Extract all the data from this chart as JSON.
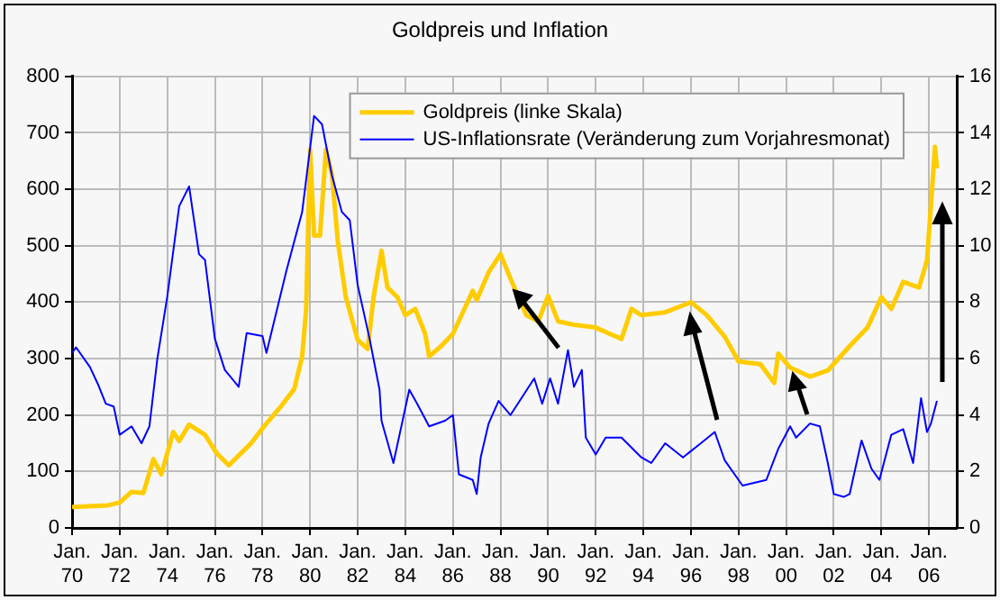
{
  "chart_data": {
    "type": "line",
    "title": "Goldpreis und Inflation",
    "marker": "none",
    "line_style": "solid",
    "grid": true,
    "legend": "top right",
    "xlim": [
      "1970-01",
      "2007-03"
    ],
    "xticks": [
      {
        "value": "1970-01",
        "label": "Jan. 70"
      },
      {
        "value": "1972-01",
        "label": "Jan. 72"
      },
      {
        "value": "1974-01",
        "label": "Jan. 74"
      },
      {
        "value": "1976-01",
        "label": "Jan. 76"
      },
      {
        "value": "1978-01",
        "label": "Jan. 78"
      },
      {
        "value": "1980-01",
        "label": "Jan. 80"
      },
      {
        "value": "1982-01",
        "label": "Jan. 82"
      },
      {
        "value": "1984-01",
        "label": "Jan. 84"
      },
      {
        "value": "1986-01",
        "label": "Jan. 86"
      },
      {
        "value": "1988-01",
        "label": "Jan. 88"
      },
      {
        "value": "1990-01",
        "label": "Jan. 90"
      },
      {
        "value": "1992-01",
        "label": "Jan. 92"
      },
      {
        "value": "1994-01",
        "label": "Jan. 94"
      },
      {
        "value": "1996-01",
        "label": "Jan. 96"
      },
      {
        "value": "1998-01",
        "label": "Jan. 98"
      },
      {
        "value": "2000-01",
        "label": "Jan. 00"
      },
      {
        "value": "2002-01",
        "label": "Jan. 02"
      },
      {
        "value": "2004-01",
        "label": "Jan. 04"
      },
      {
        "value": "2006-01",
        "label": "Jan. 06"
      }
    ],
    "ylim": [
      0,
      800
    ],
    "yticks": [
      0,
      100,
      200,
      300,
      400,
      500,
      600,
      700,
      800
    ],
    "y2lim": [
      0,
      16
    ],
    "y2ticks": [
      0,
      2,
      4,
      6,
      8,
      10,
      12,
      14,
      16
    ],
    "series": [
      {
        "name": "Goldpreis (linke Skala)",
        "color": "#ffcc00",
        "x": [
          "1970-01",
          "1971-07",
          "1972-01",
          "1972-07",
          "1973-01",
          "1973-06",
          "1973-10",
          "1974-04",
          "1974-07",
          "1974-12",
          "1975-08",
          "1976-02",
          "1976-08",
          "1977-07",
          "1978-02",
          "1978-10",
          "1979-05",
          "1979-09",
          "1979-11",
          "1980-01",
          "1980-03",
          "1980-06",
          "1980-09",
          "1980-12",
          "1981-03",
          "1981-07",
          "1982-01",
          "1982-06",
          "1982-09",
          "1983-01",
          "1983-04",
          "1983-09",
          "1984-01",
          "1984-06",
          "1984-11",
          "1985-01",
          "1985-07",
          "1986-01",
          "1986-11",
          "1987-01",
          "1987-07",
          "1988-01",
          "1988-06",
          "1989-02",
          "1989-08",
          "1990-01",
          "1990-06",
          "1991-02",
          "1992-01",
          "1992-08",
          "1993-02",
          "1993-07",
          "1993-12",
          "1994-12",
          "1996-01",
          "1996-09",
          "1997-06",
          "1998-01",
          "1998-12",
          "1999-07",
          "1999-09",
          "2000-03",
          "2001-01",
          "2001-10",
          "2002-09",
          "2003-06",
          "2004-01",
          "2004-06",
          "2004-12",
          "2005-08",
          "2005-12",
          "2006-02",
          "2006-04",
          "2006-05"
        ],
        "values": [
          37,
          40,
          45,
          64,
          62,
          122,
          95,
          170,
          154,
          183,
          165,
          132,
          111,
          149,
          181,
          214,
          246,
          304,
          387,
          670,
          518,
          518,
          670,
          626,
          507,
          409,
          333,
          317,
          409,
          491,
          426,
          409,
          377,
          388,
          344,
          304,
          322,
          344,
          420,
          404,
          453,
          485,
          442,
          377,
          366,
          411,
          366,
          360,
          355,
          344,
          335,
          388,
          377,
          382,
          400,
          377,
          339,
          295,
          290,
          257,
          309,
          284,
          268,
          279,
          322,
          355,
          409,
          388,
          436,
          426,
          474,
          572,
          675,
          637
        ]
      },
      {
        "name": "US-Inflationsrate (Veränderung zum Vorjahresmonat)",
        "color": "#0000ff",
        "axis": "y2",
        "x": [
          "1970-01",
          "1970-03",
          "1970-10",
          "1971-02",
          "1971-06",
          "1971-10",
          "1972-01",
          "1972-07",
          "1972-12",
          "1973-04",
          "1973-08",
          "1974-01",
          "1974-07",
          "1974-12",
          "1975-05",
          "1975-08",
          "1976-01",
          "1976-06",
          "1977-01",
          "1977-05",
          "1978-01",
          "1978-03",
          "1979-01",
          "1979-09",
          "1980-03",
          "1980-07",
          "1980-12",
          "1981-05",
          "1981-09",
          "1982-01",
          "1982-07",
          "1982-12",
          "1983-01",
          "1983-07",
          "1984-03",
          "1984-07",
          "1985-01",
          "1985-09",
          "1986-01",
          "1986-04",
          "1986-11",
          "1987-01",
          "1987-03",
          "1987-07",
          "1987-12",
          "1988-06",
          "1989-06",
          "1989-10",
          "1990-02",
          "1990-06",
          "1990-11",
          "1991-02",
          "1991-06",
          "1991-08",
          "1992-01",
          "1992-06",
          "1993-02",
          "1993-12",
          "1994-05",
          "1994-12",
          "1995-09",
          "1996-06",
          "1997-01",
          "1997-06",
          "1998-03",
          "1999-03",
          "1999-09",
          "2000-03",
          "2000-06",
          "2001-01",
          "2001-06",
          "2001-10",
          "2002-01",
          "2002-06",
          "2002-09",
          "2003-03",
          "2003-08",
          "2003-12",
          "2004-06",
          "2004-12",
          "2005-05",
          "2005-09",
          "2005-12",
          "2006-02",
          "2006-05"
        ],
        "values": [
          6.2,
          6.4,
          5.7,
          5.1,
          4.4,
          4.3,
          3.3,
          3.6,
          3.0,
          3.6,
          6.0,
          8.2,
          11.4,
          12.1,
          9.7,
          9.5,
          6.7,
          5.6,
          5.0,
          6.9,
          6.8,
          6.2,
          9.1,
          11.2,
          14.6,
          14.3,
          12.5,
          11.2,
          10.9,
          8.6,
          6.7,
          4.9,
          3.8,
          2.3,
          4.9,
          4.4,
          3.6,
          3.8,
          4.0,
          1.9,
          1.7,
          1.2,
          2.5,
          3.7,
          4.5,
          4.0,
          5.3,
          4.4,
          5.3,
          4.4,
          6.3,
          5.0,
          5.6,
          3.2,
          2.6,
          3.2,
          3.2,
          2.5,
          2.3,
          3.0,
          2.5,
          3.0,
          3.4,
          2.4,
          1.5,
          1.7,
          2.8,
          3.6,
          3.2,
          3.7,
          3.6,
          2.3,
          1.2,
          1.1,
          1.2,
          3.1,
          2.1,
          1.7,
          3.3,
          3.5,
          2.3,
          4.6,
          3.4,
          3.7,
          4.5
        ]
      }
    ]
  }
}
